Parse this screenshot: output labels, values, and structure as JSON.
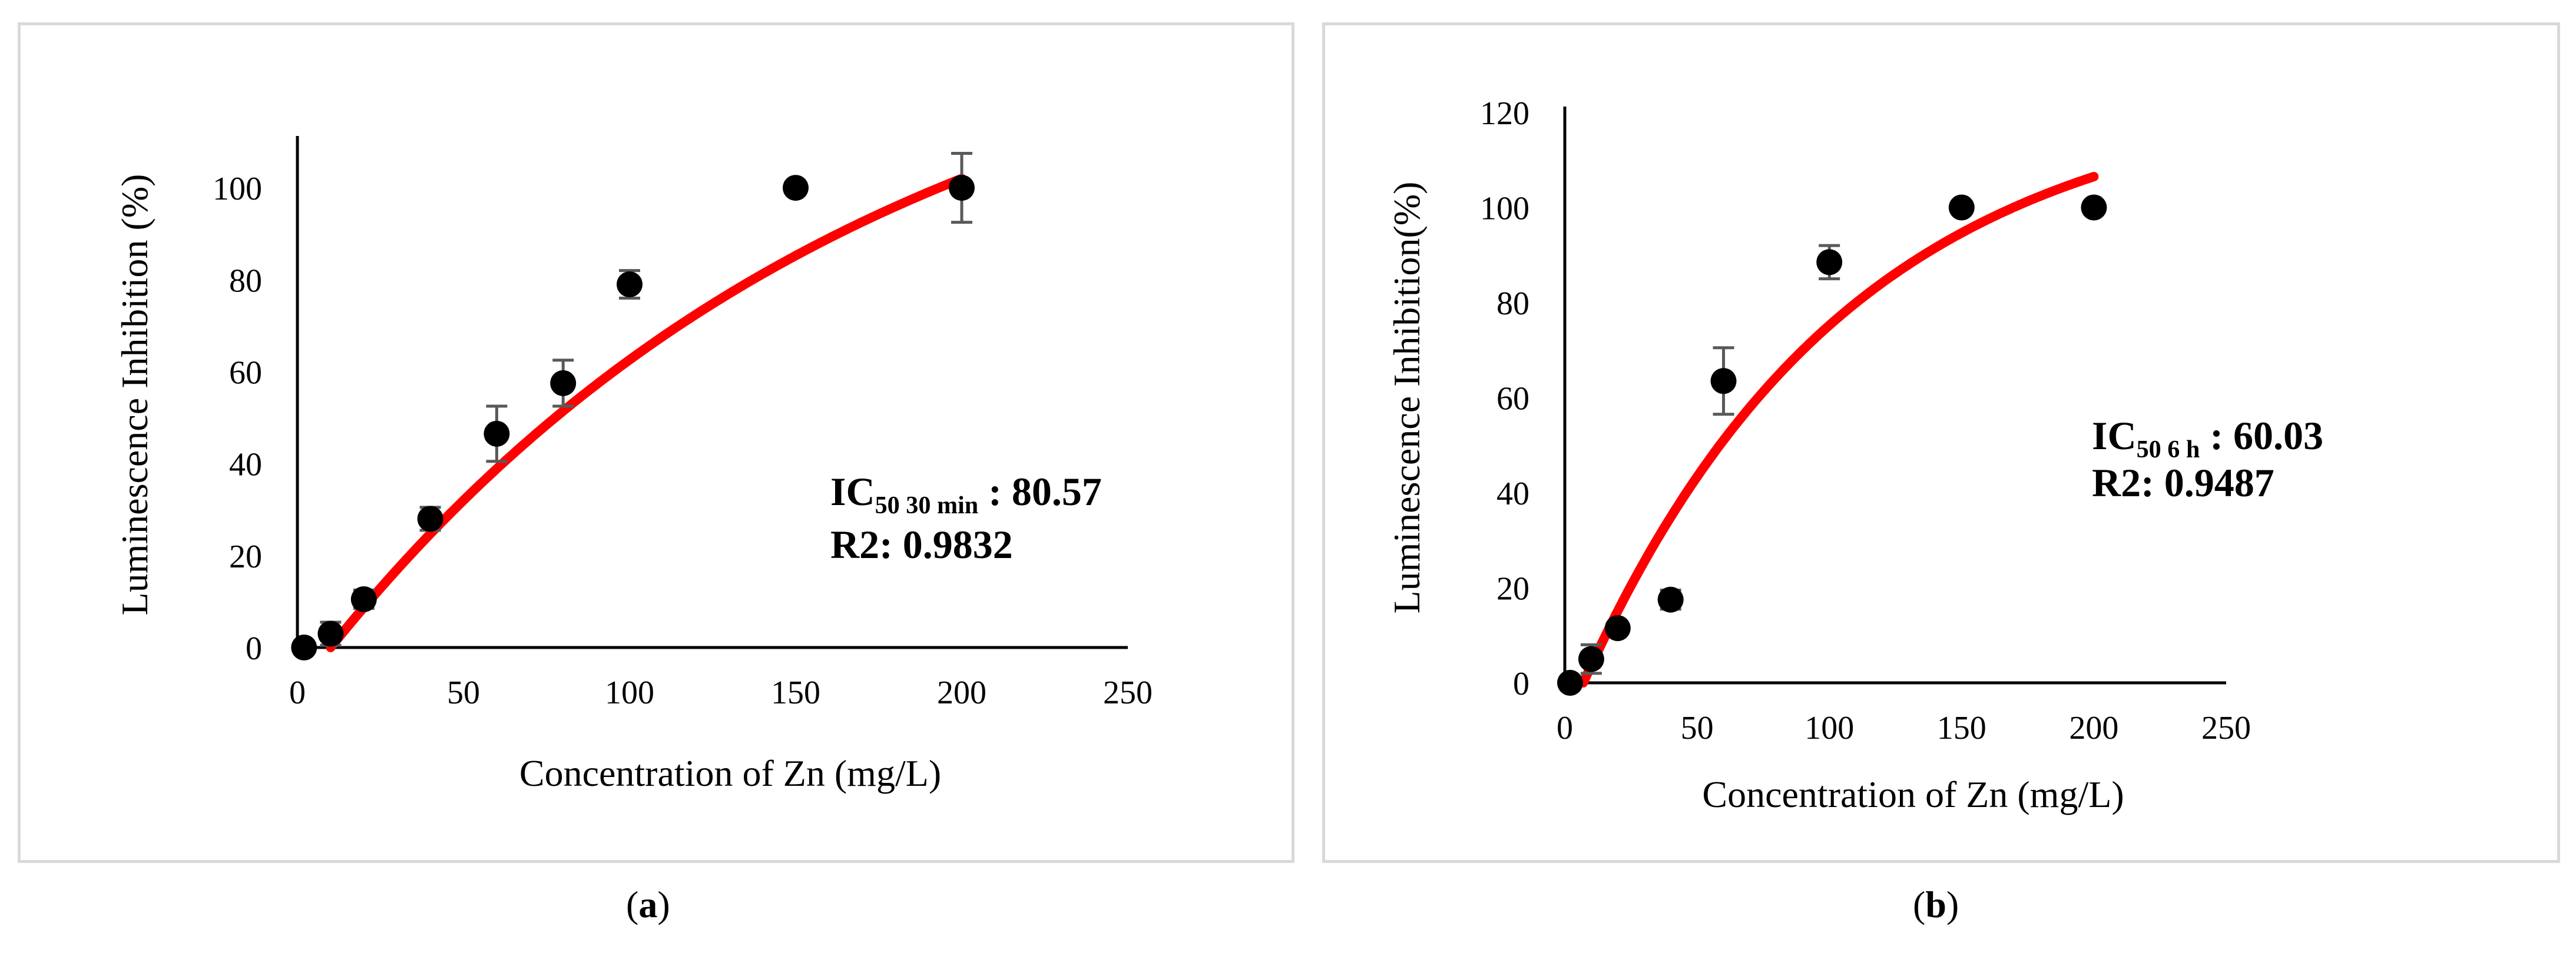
{
  "chart_data": [
    {
      "type": "scatter",
      "panel_label": "a",
      "xlabel": "Concentration of Zn (mg/L)",
      "ylabel": "Luminescence Inhibition (%)",
      "xlim": [
        0,
        250
      ],
      "ylim": [
        0,
        110
      ],
      "x_ticks": [
        0,
        50,
        100,
        150,
        200,
        250
      ],
      "y_ticks": [
        0,
        20,
        40,
        60,
        80,
        100
      ],
      "grid": false,
      "series": [
        {
          "name": "measured",
          "color": "#000000",
          "x": [
            2,
            10,
            20,
            40,
            60,
            80,
            100,
            150,
            200
          ],
          "y": [
            0,
            3,
            10.5,
            28,
            46.5,
            57.5,
            79,
            100,
            100
          ],
          "error": [
            0,
            2.5,
            2,
            2.5,
            6,
            5,
            3,
            0,
            7.5
          ]
        },
        {
          "name": "fit",
          "color": "#ff0000",
          "curve": {
            "x0": 10,
            "ymax": 150,
            "k": 0.006,
            "x_end": 200
          }
        }
      ],
      "annotation": {
        "ic_label": "IC",
        "ic_sub": "50 30 min",
        "ic_value": " : 80.57",
        "r2": "R2: 0.9832"
      }
    },
    {
      "type": "scatter",
      "panel_label": "b",
      "xlabel": "Concentration of Zn (mg/L)",
      "ylabel": "Luminescence Inhibition(%)",
      "xlim": [
        0,
        250
      ],
      "ylim": [
        0,
        120
      ],
      "x_ticks": [
        0,
        50,
        100,
        150,
        200,
        250
      ],
      "y_ticks": [
        0,
        20,
        40,
        60,
        80,
        100,
        120
      ],
      "grid": false,
      "series": [
        {
          "name": "measured",
          "color": "#000000",
          "x": [
            2,
            10,
            20,
            40,
            60,
            100,
            150,
            200
          ],
          "y": [
            0,
            5,
            11.5,
            17.5,
            63.5,
            88.5,
            100,
            100
          ],
          "error": [
            0,
            3,
            0,
            2,
            7,
            3.5,
            0,
            0
          ]
        },
        {
          "name": "fit",
          "color": "#ff0000",
          "curve": {
            "x0": 7,
            "ymax": 125,
            "k": 0.0099,
            "x_end": 200
          }
        }
      ],
      "annotation": {
        "ic_label": "IC",
        "ic_sub": "50 6 h",
        "ic_value": " : 60.03",
        "r2": "R2: 0.9487"
      }
    }
  ],
  "captions": {
    "a": "a",
    "b": "b"
  }
}
